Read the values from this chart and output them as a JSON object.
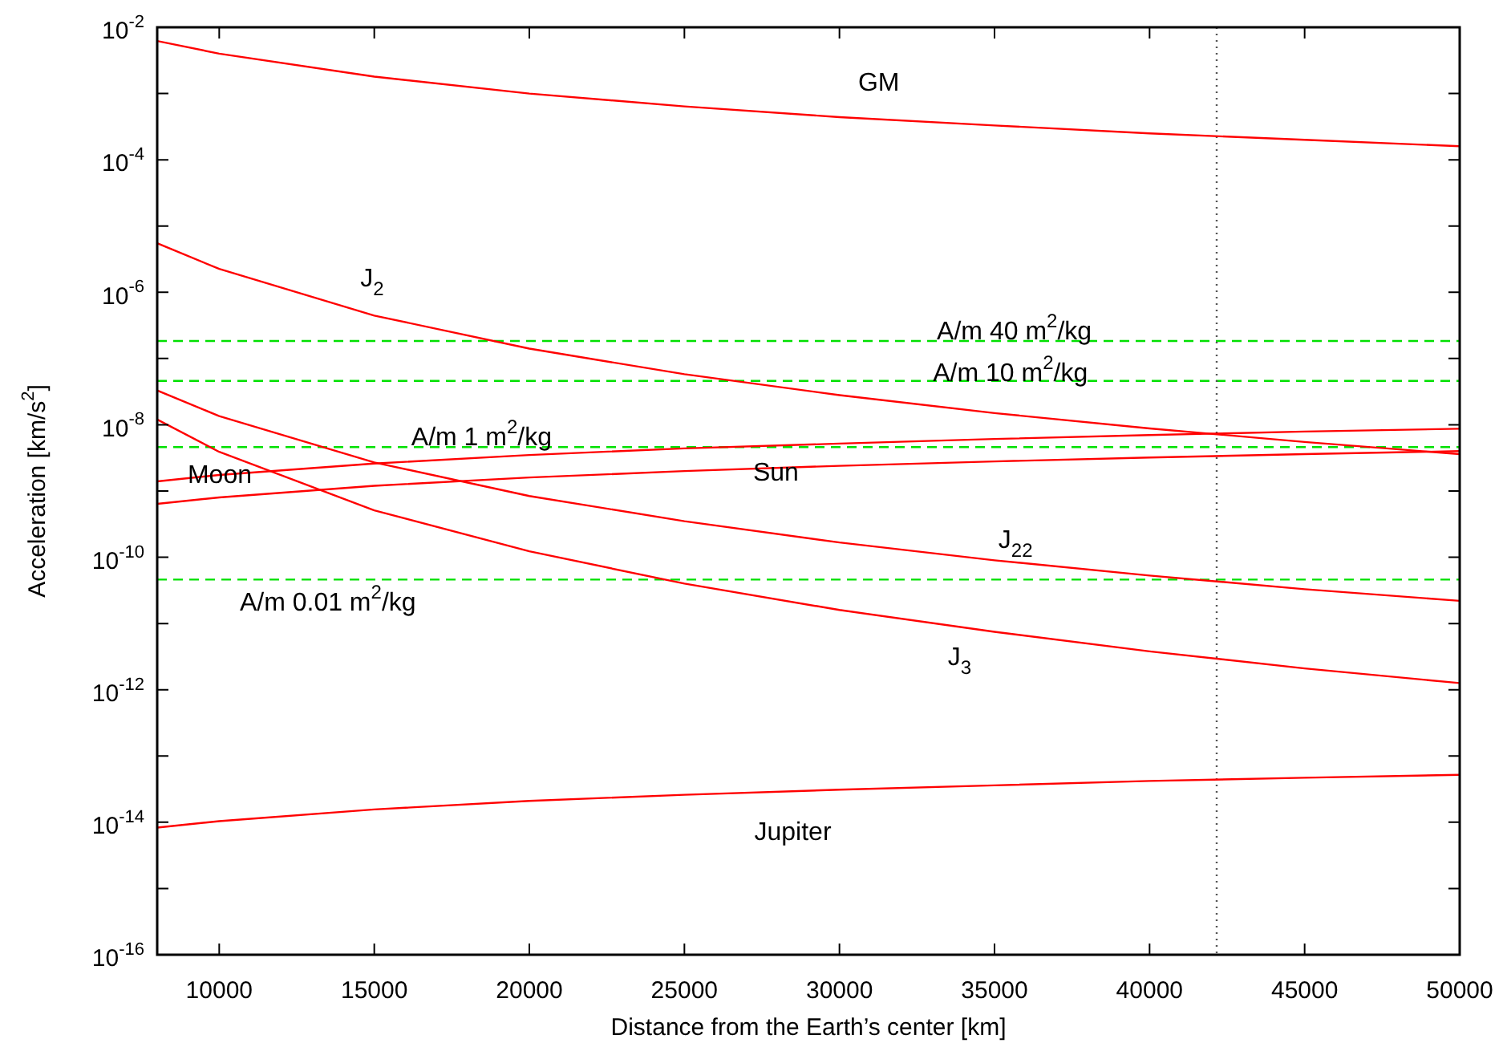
{
  "chart_data": {
    "type": "line",
    "xlabel": "Distance from the Earth’s center [km]",
    "ylabel": "Acceleration [km/s$^{2}$]",
    "x": [
      8000,
      10000,
      15000,
      20000,
      25000,
      30000,
      35000,
      40000,
      45000,
      50000
    ],
    "series": [
      {
        "name": "GM",
        "color": "#ff0000",
        "values": [
          0.0062,
          0.004,
          0.0018,
          0.001,
          0.00064,
          0.00044,
          0.00033,
          0.00025,
          0.0002,
          0.00016
        ]
      },
      {
        "name": "J$_{2}$",
        "color": "#ff0000",
        "values": [
          5.5e-06,
          2.25e-06,
          4.45e-07,
          1.41e-07,
          5.8e-08,
          2.8e-08,
          1.5e-08,
          8.8e-09,
          5.5e-09,
          3.6e-09
        ]
      },
      {
        "name": "J$_{22}$",
        "color": "#ff0000",
        "values": [
          3.3e-08,
          1.35e-08,
          2.7e-09,
          8.4e-10,
          3.5e-10,
          1.67e-10,
          9e-11,
          5.3e-11,
          3.3e-11,
          2.2e-11
        ]
      },
      {
        "name": "J$_{3}$",
        "color": "#ff0000",
        "values": [
          1.2e-08,
          3.9e-09,
          5.1e-10,
          1.23e-10,
          4e-11,
          1.6e-11,
          7.5e-12,
          3.8e-12,
          2.1e-12,
          1.26e-12
        ]
      },
      {
        "name": "Moon",
        "color": "#ff0000",
        "values": [
          1.4e-09,
          1.75e-09,
          2.6e-09,
          3.5e-09,
          4.4e-09,
          5.2e-09,
          6.1e-09,
          7e-09,
          7.9e-09,
          8.7e-09
        ]
      },
      {
        "name": "Sun",
        "color": "#ff0000",
        "values": [
          6.4e-10,
          8e-10,
          1.2e-09,
          1.6e-09,
          2e-09,
          2.4e-09,
          2.8e-09,
          3.2e-09,
          3.6e-09,
          4e-09
        ]
      },
      {
        "name": "Jupiter",
        "color": "#ff0000",
        "values": [
          8.3e-15,
          1.04e-14,
          1.56e-14,
          2.1e-14,
          2.6e-14,
          3.1e-14,
          3.6e-14,
          4.2e-14,
          4.7e-14,
          5.2e-14
        ]
      }
    ],
    "xlim": [
      8000,
      50000
    ],
    "xticks": [
      10000,
      15000,
      20000,
      25000,
      30000,
      35000,
      40000,
      45000,
      50000
    ],
    "ylim": [
      1e-16,
      0.01
    ],
    "yticks": [
      {
        "value": 1e-16,
        "label": "10$^{-16}$"
      },
      {
        "value": 1e-15,
        "label": null
      },
      {
        "value": 1e-14,
        "label": "10$^{-14}$"
      },
      {
        "value": 1e-13,
        "label": null
      },
      {
        "value": 1e-12,
        "label": "10$^{-12}$"
      },
      {
        "value": 1e-11,
        "label": null
      },
      {
        "value": 1e-10,
        "label": "10$^{-10}$"
      },
      {
        "value": 1e-09,
        "label": null
      },
      {
        "value": 1e-08,
        "label": "10$^{-8}$"
      },
      {
        "value": 1e-07,
        "label": null
      },
      {
        "value": 1e-06,
        "label": "10$^{-6}$"
      },
      {
        "value": 1e-05,
        "label": null
      },
      {
        "value": 0.0001,
        "label": "10$^{-4}$"
      },
      {
        "value": 0.001,
        "label": null
      },
      {
        "value": 0.01,
        "label": "10$^{-2}$"
      }
    ],
    "log": "y",
    "grid": false,
    "legend": false,
    "marker": "none",
    "line_style": "solid",
    "ref_lines": [
      {
        "axis": "y",
        "value": 1.84e-07,
        "label": "A/m 40 m$^{2}$/kg",
        "color": "#00e000",
        "line_style": "dashed"
      },
      {
        "axis": "y",
        "value": 4.6e-08,
        "label": "A/m 10 m$^{2}$/kg",
        "color": "#00e000",
        "line_style": "dashed"
      },
      {
        "axis": "y",
        "value": 4.6e-09,
        "label": "A/m 1 m$^{2}$/kg",
        "color": "#00e000",
        "line_style": "dashed"
      },
      {
        "axis": "y",
        "value": 4.6e-11,
        "label": "A/m 0.01 m$^{2}$/kg",
        "color": "#00e000",
        "line_style": "dashed"
      },
      {
        "axis": "x",
        "value": 42164,
        "color": "#555555",
        "line_style": "dotted"
      }
    ]
  }
}
